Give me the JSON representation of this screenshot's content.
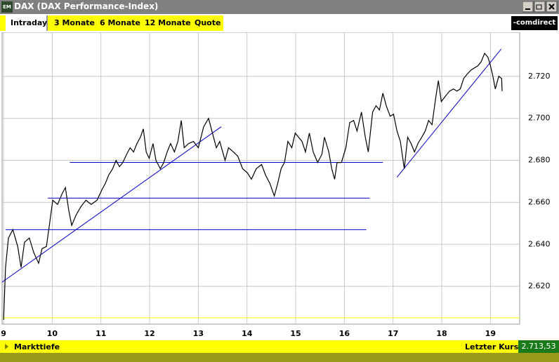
{
  "window": {
    "title": "DAX (DAX Performance-Index)",
    "tabs": [
      "Intraday",
      "3 Monate",
      "6 Monate",
      "12 Monate",
      "Quote"
    ],
    "logo": "-comdirect"
  },
  "footer": {
    "left": "Markttiefe",
    "last_label": "Letzter Kurs",
    "last_value": "2.713,53"
  },
  "chart_data": {
    "type": "line",
    "color": "#000000",
    "grid": true,
    "xlim": [
      8.97,
      19.6
    ],
    "ylim": [
      2.602,
      2.741
    ],
    "xticks": [
      9,
      10,
      11,
      12,
      13,
      14,
      15,
      16,
      17,
      18,
      19
    ],
    "yticks": [
      {
        "value": 2.62,
        "label": "2.620"
      },
      {
        "value": 2.64,
        "label": "2.640"
      },
      {
        "value": 2.66,
        "label": "2.660"
      },
      {
        "value": 2.68,
        "label": "2.680"
      },
      {
        "value": 2.7,
        "label": "2.700"
      },
      {
        "value": 2.72,
        "label": "2.720"
      }
    ],
    "x": [
      9.0,
      9.04,
      9.1,
      9.19,
      9.29,
      9.36,
      9.43,
      9.53,
      9.62,
      9.72,
      9.79,
      9.88,
      9.94,
      10.01,
      10.11,
      10.2,
      10.27,
      10.34,
      10.4,
      10.49,
      10.59,
      10.69,
      10.8,
      10.92,
      11.02,
      11.09,
      11.16,
      11.24,
      11.31,
      11.38,
      11.45,
      11.53,
      11.6,
      11.67,
      11.74,
      11.81,
      11.87,
      11.93,
      11.99,
      12.07,
      12.13,
      12.22,
      12.29,
      12.36,
      12.43,
      12.51,
      12.58,
      12.65,
      12.71,
      12.8,
      12.9,
      13.0,
      13.11,
      13.21,
      13.29,
      13.37,
      13.44,
      13.55,
      13.62,
      13.72,
      13.81,
      13.91,
      14.01,
      14.09,
      14.19,
      14.3,
      14.38,
      14.47,
      14.56,
      14.63,
      14.7,
      14.77,
      14.84,
      14.92,
      14.99,
      15.06,
      15.13,
      15.2,
      15.28,
      15.36,
      15.45,
      15.54,
      15.59,
      15.68,
      15.74,
      15.8,
      15.85,
      15.94,
      16.03,
      16.11,
      16.19,
      16.26,
      16.35,
      16.43,
      16.49,
      16.58,
      16.65,
      16.72,
      16.79,
      16.86,
      16.94,
      17.01,
      17.08,
      17.15,
      17.23,
      17.3,
      17.37,
      17.44,
      17.51,
      17.59,
      17.66,
      17.73,
      17.8,
      17.87,
      17.93,
      17.99,
      18.09,
      18.16,
      18.24,
      18.31,
      18.38,
      18.45,
      18.52,
      18.6,
      18.67,
      18.74,
      18.81,
      18.88,
      18.95,
      18.99,
      19.05,
      19.1,
      19.17,
      19.23,
      19.24
    ],
    "values": [
      2.604,
      2.629,
      2.643,
      2.647,
      2.639,
      2.629,
      2.641,
      2.643,
      2.636,
      2.631,
      2.638,
      2.639,
      2.649,
      2.661,
      2.659,
      2.664,
      2.667,
      2.656,
      2.649,
      2.654,
      2.658,
      2.661,
      2.659,
      2.661,
      2.666,
      2.669,
      2.673,
      2.676,
      2.68,
      2.677,
      2.679,
      2.683,
      2.686,
      2.684,
      2.688,
      2.691,
      2.695,
      2.684,
      2.681,
      2.688,
      2.68,
      2.676,
      2.679,
      2.684,
      2.688,
      2.684,
      2.689,
      2.699,
      2.686,
      2.688,
      2.689,
      2.686,
      2.696,
      2.7,
      2.693,
      2.686,
      2.689,
      2.68,
      2.686,
      2.684,
      2.682,
      2.676,
      2.674,
      2.671,
      2.676,
      2.678,
      2.673,
      2.669,
      2.663,
      2.669,
      2.676,
      2.679,
      2.689,
      2.686,
      2.693,
      2.691,
      2.689,
      2.684,
      2.693,
      2.684,
      2.679,
      2.683,
      2.691,
      2.684,
      2.676,
      2.671,
      2.679,
      2.679,
      2.686,
      2.698,
      2.699,
      2.694,
      2.703,
      2.691,
      2.684,
      2.703,
      2.706,
      2.704,
      2.712,
      2.706,
      2.701,
      2.702,
      2.694,
      2.689,
      2.676,
      2.691,
      2.688,
      2.684,
      2.688,
      2.691,
      2.694,
      2.699,
      2.697,
      2.709,
      2.718,
      2.708,
      2.711,
      2.713,
      2.714,
      2.713,
      2.714,
      2.719,
      2.721,
      2.723,
      2.724,
      2.725,
      2.727,
      2.731,
      2.729,
      2.726,
      2.72,
      2.714,
      2.72,
      2.719,
      2.713
    ],
    "lines": [
      {
        "color": "#0000cc",
        "x": [
          10.36,
          16.79
        ],
        "y": [
          2.679,
          2.679
        ]
      },
      {
        "color": "#0000cc",
        "x": [
          9.91,
          16.52
        ],
        "y": [
          2.662,
          2.662
        ]
      },
      {
        "color": "#0000cc",
        "x": [
          9.04,
          16.45
        ],
        "y": [
          2.647,
          2.647
        ]
      },
      {
        "color": "#0000cc",
        "x": [
          8.97,
          13.47
        ],
        "y": [
          2.622,
          2.696
        ]
      },
      {
        "color": "#0000cc",
        "x": [
          17.08,
          19.22
        ],
        "y": [
          2.672,
          2.733
        ]
      },
      {
        "color": "#ffff00",
        "x": [
          8.97,
          19.6
        ],
        "y": [
          2.605,
          2.605
        ]
      }
    ]
  }
}
